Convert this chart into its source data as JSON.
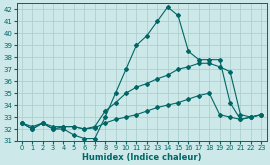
{
  "xlabel": "Humidex (Indice chaleur)",
  "xlim": [
    -0.5,
    23.5
  ],
  "ylim": [
    31,
    42.5
  ],
  "yticks": [
    31,
    32,
    33,
    34,
    35,
    36,
    37,
    38,
    39,
    40,
    41,
    42
  ],
  "xticks": [
    0,
    1,
    2,
    3,
    4,
    5,
    6,
    7,
    8,
    9,
    10,
    11,
    12,
    13,
    14,
    15,
    16,
    17,
    18,
    19,
    20,
    21,
    22,
    23
  ],
  "line_color": "#006666",
  "bg_color": "#cce8e8",
  "grid_color": "#aacccc",
  "series": [
    {
      "x": [
        0,
        1,
        2,
        3,
        4,
        5,
        6,
        7,
        8,
        9,
        10,
        11,
        12,
        13,
        14,
        15,
        16,
        17,
        18,
        19,
        20,
        21,
        22,
        23
      ],
      "y": [
        32.5,
        32.0,
        32.5,
        32.0,
        32.0,
        31.5,
        31.2,
        31.2,
        33.0,
        35.0,
        37.0,
        39.0,
        39.8,
        41.0,
        42.2,
        41.5,
        38.5,
        37.8,
        37.8,
        37.8,
        34.2,
        32.8,
        33.0,
        33.2
      ]
    },
    {
      "x": [
        0,
        1,
        2,
        3,
        4,
        5,
        6,
        7,
        8,
        9,
        10,
        11,
        12,
        13,
        14,
        15,
        16,
        17,
        18,
        19,
        20,
        21,
        22,
        23
      ],
      "y": [
        32.5,
        32.2,
        32.5,
        32.2,
        32.2,
        32.2,
        32.0,
        32.2,
        33.5,
        34.2,
        35.0,
        35.5,
        35.8,
        36.2,
        36.5,
        37.0,
        37.2,
        37.5,
        37.5,
        37.2,
        36.8,
        33.2,
        33.0,
        33.2
      ]
    },
    {
      "x": [
        0,
        1,
        2,
        3,
        4,
        5,
        6,
        7,
        8,
        9,
        10,
        11,
        12,
        13,
        14,
        15,
        16,
        17,
        18,
        19,
        20,
        21,
        22,
        23
      ],
      "y": [
        32.5,
        32.0,
        32.5,
        32.0,
        32.2,
        32.2,
        32.0,
        32.1,
        32.5,
        32.8,
        33.0,
        33.2,
        33.5,
        33.8,
        34.0,
        34.2,
        34.5,
        34.8,
        35.0,
        33.2,
        33.0,
        32.8,
        33.0,
        33.2
      ]
    }
  ]
}
